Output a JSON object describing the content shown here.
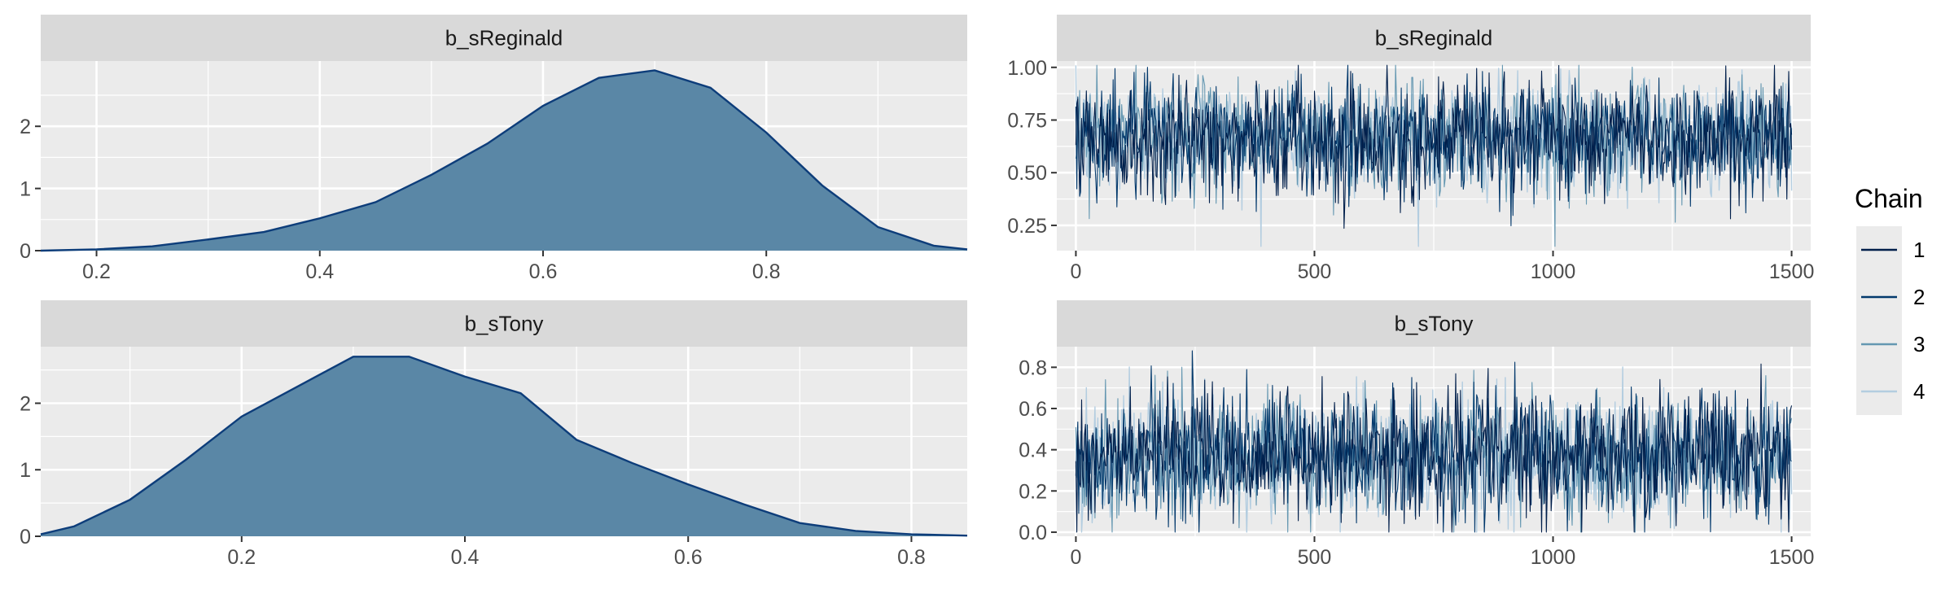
{
  "colors": {
    "panel_background": "#ebebeb",
    "strip_background": "#d9d9d9",
    "grid": "#ffffff",
    "density_fill": "#5a87a6",
    "density_line": "#0d3d7a",
    "chain_1": "#011f4b",
    "chain_2": "#03396c",
    "chain_3": "#6497b1",
    "chain_4": "#b3cde0"
  },
  "legend": {
    "title": "Chain",
    "entries": [
      "1",
      "2",
      "3",
      "4"
    ],
    "position": "right"
  },
  "chart_data": [
    {
      "type": "area",
      "title": "b_sReginald",
      "x": [
        0.15,
        0.2,
        0.25,
        0.3,
        0.35,
        0.4,
        0.45,
        0.5,
        0.55,
        0.6,
        0.65,
        0.7,
        0.75,
        0.8,
        0.85,
        0.9,
        0.95,
        0.98
      ],
      "y": [
        0.0,
        0.02,
        0.07,
        0.18,
        0.3,
        0.52,
        0.78,
        1.22,
        1.72,
        2.33,
        2.78,
        2.9,
        2.62,
        1.9,
        1.05,
        0.38,
        0.08,
        0.02
      ],
      "xlim": [
        0.15,
        0.98
      ],
      "ylim": [
        0,
        3.05
      ],
      "xticks": [
        "0.2",
        "0.4",
        "0.6",
        "0.8"
      ],
      "yticks": [
        "0",
        "1",
        "2"
      ]
    },
    {
      "type": "line",
      "title": "b_sReginald",
      "xlim": [
        -40,
        1540
      ],
      "ylim": [
        0.13,
        1.03
      ],
      "xticks": [
        "0",
        "500",
        "1000",
        "1500"
      ],
      "yticks": [
        "0.25",
        "0.50",
        "0.75",
        "1.00"
      ],
      "iterations": 1500,
      "series": [
        {
          "name": "1",
          "mean": 0.67,
          "sd": 0.135
        },
        {
          "name": "2",
          "mean": 0.67,
          "sd": 0.135
        },
        {
          "name": "3",
          "mean": 0.67,
          "sd": 0.135
        },
        {
          "name": "4",
          "mean": 0.67,
          "sd": 0.135
        }
      ]
    },
    {
      "type": "area",
      "title": "b_sTony",
      "x": [
        0.02,
        0.05,
        0.1,
        0.15,
        0.2,
        0.25,
        0.3,
        0.35,
        0.4,
        0.45,
        0.5,
        0.55,
        0.6,
        0.65,
        0.7,
        0.75,
        0.8,
        0.85
      ],
      "y": [
        0.03,
        0.15,
        0.55,
        1.15,
        1.8,
        2.25,
        2.7,
        2.7,
        2.4,
        2.15,
        1.45,
        1.1,
        0.78,
        0.48,
        0.2,
        0.08,
        0.03,
        0.01
      ],
      "xlim": [
        0.02,
        0.85
      ],
      "ylim": [
        0,
        2.85
      ],
      "xticks": [
        "0.2",
        "0.4",
        "0.6",
        "0.8"
      ],
      "yticks": [
        "0",
        "1",
        "2"
      ]
    },
    {
      "type": "line",
      "title": "b_sTony",
      "xlim": [
        -40,
        1540
      ],
      "ylim": [
        -0.02,
        0.9
      ],
      "xticks": [
        "0",
        "500",
        "1000",
        "1500"
      ],
      "yticks": [
        "0.0",
        "0.2",
        "0.4",
        "0.6",
        "0.8"
      ],
      "iterations": 1500,
      "series": [
        {
          "name": "1",
          "mean": 0.37,
          "sd": 0.15
        },
        {
          "name": "2",
          "mean": 0.37,
          "sd": 0.15
        },
        {
          "name": "3",
          "mean": 0.37,
          "sd": 0.15
        },
        {
          "name": "4",
          "mean": 0.37,
          "sd": 0.15
        }
      ]
    }
  ]
}
